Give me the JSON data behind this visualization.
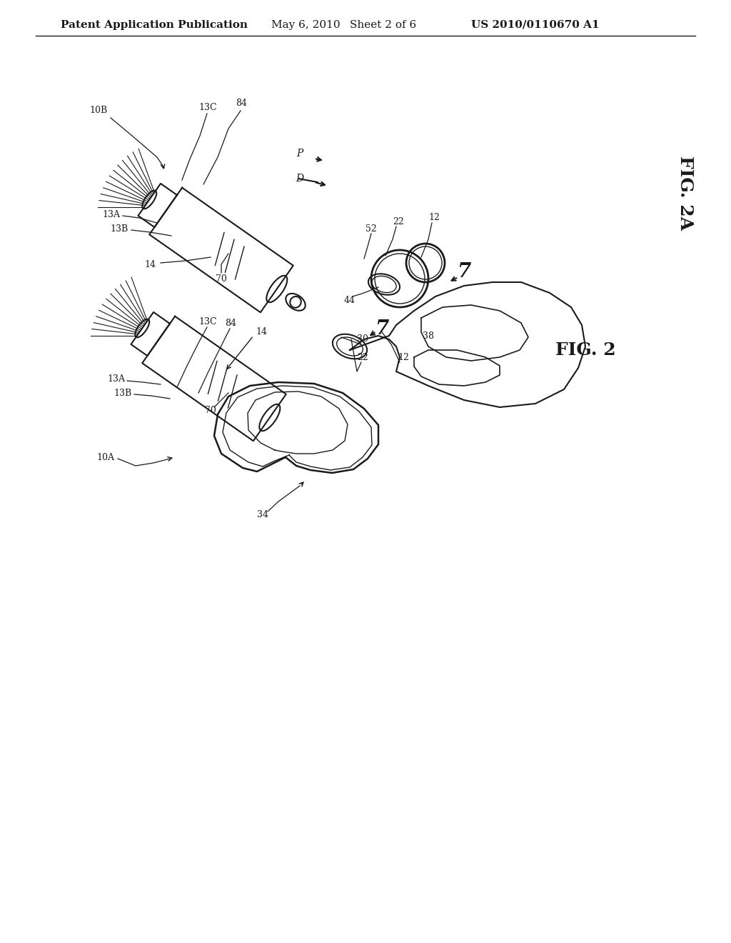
{
  "bg_color": "#ffffff",
  "header_text": "Patent Application Publication",
  "header_date": "May 6, 2010",
  "header_sheet": "Sheet 2 of 6",
  "header_patent": "US 2010/0110670 A1",
  "fig2a_label": "FIG. 2A",
  "fig2_label": "FIG. 2",
  "line_color": "#1a1a1a",
  "text_color": "#1a1a1a",
  "header_fontsize": 11,
  "label_fontsize": 10,
  "fig_label_fontsize": 16
}
